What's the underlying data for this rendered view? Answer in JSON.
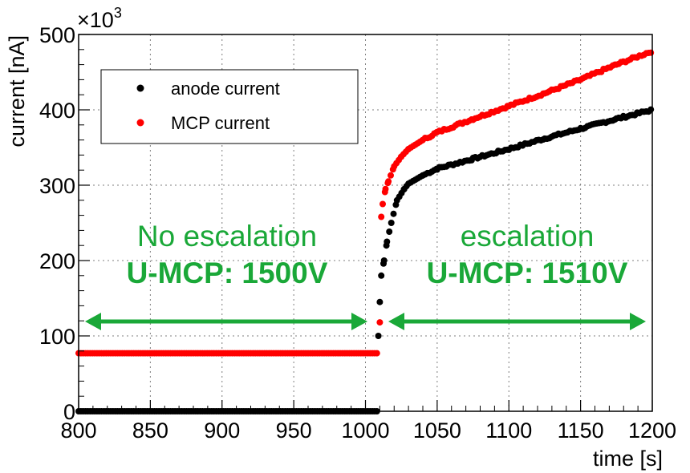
{
  "chart_data": {
    "type": "scatter",
    "xlabel": "time [s]",
    "ylabel": "current [nA]",
    "y_multiplier_label": "×10",
    "y_multiplier_exponent": "3",
    "xlim": [
      800,
      1200
    ],
    "ylim": [
      0,
      500
    ],
    "x_ticks": [
      800,
      850,
      900,
      950,
      1000,
      1050,
      1100,
      1150,
      1200
    ],
    "y_ticks": [
      0,
      100,
      200,
      300,
      400,
      500
    ],
    "grid": true,
    "legend_position": "top-left",
    "series": [
      {
        "name": "anode current",
        "color": "#000000",
        "points": [
          [
            800,
            0
          ],
          [
            1008,
            0
          ],
          [
            1009,
            100
          ],
          [
            1010,
            145
          ],
          [
            1011,
            180
          ],
          [
            1013,
            200
          ],
          [
            1015,
            225
          ],
          [
            1018,
            250
          ],
          [
            1022,
            280
          ],
          [
            1027,
            295
          ],
          [
            1030,
            302
          ],
          [
            1040,
            313
          ],
          [
            1050,
            322
          ],
          [
            1075,
            335
          ],
          [
            1100,
            348
          ],
          [
            1125,
            362
          ],
          [
            1150,
            375
          ],
          [
            1175,
            388
          ],
          [
            1200,
            400
          ]
        ]
      },
      {
        "name": "MCP current",
        "color": "#ff0000",
        "points": [
          [
            800,
            77
          ],
          [
            1008,
            77
          ],
          [
            1010,
            118
          ],
          [
            1011,
            258
          ],
          [
            1012,
            275
          ],
          [
            1014,
            295
          ],
          [
            1016,
            305
          ],
          [
            1020,
            325
          ],
          [
            1025,
            338
          ],
          [
            1030,
            348
          ],
          [
            1040,
            360
          ],
          [
            1050,
            370
          ],
          [
            1075,
            388
          ],
          [
            1100,
            405
          ],
          [
            1125,
            422
          ],
          [
            1150,
            440
          ],
          [
            1175,
            460
          ],
          [
            1200,
            478
          ]
        ]
      }
    ],
    "annotations": {
      "left_line1": "No escalation",
      "left_line2": "U-MCP: 1500V",
      "right_line1": "escalation",
      "right_line2": "U-MCP: 1510V",
      "arrow_color": "#1aa838"
    }
  }
}
